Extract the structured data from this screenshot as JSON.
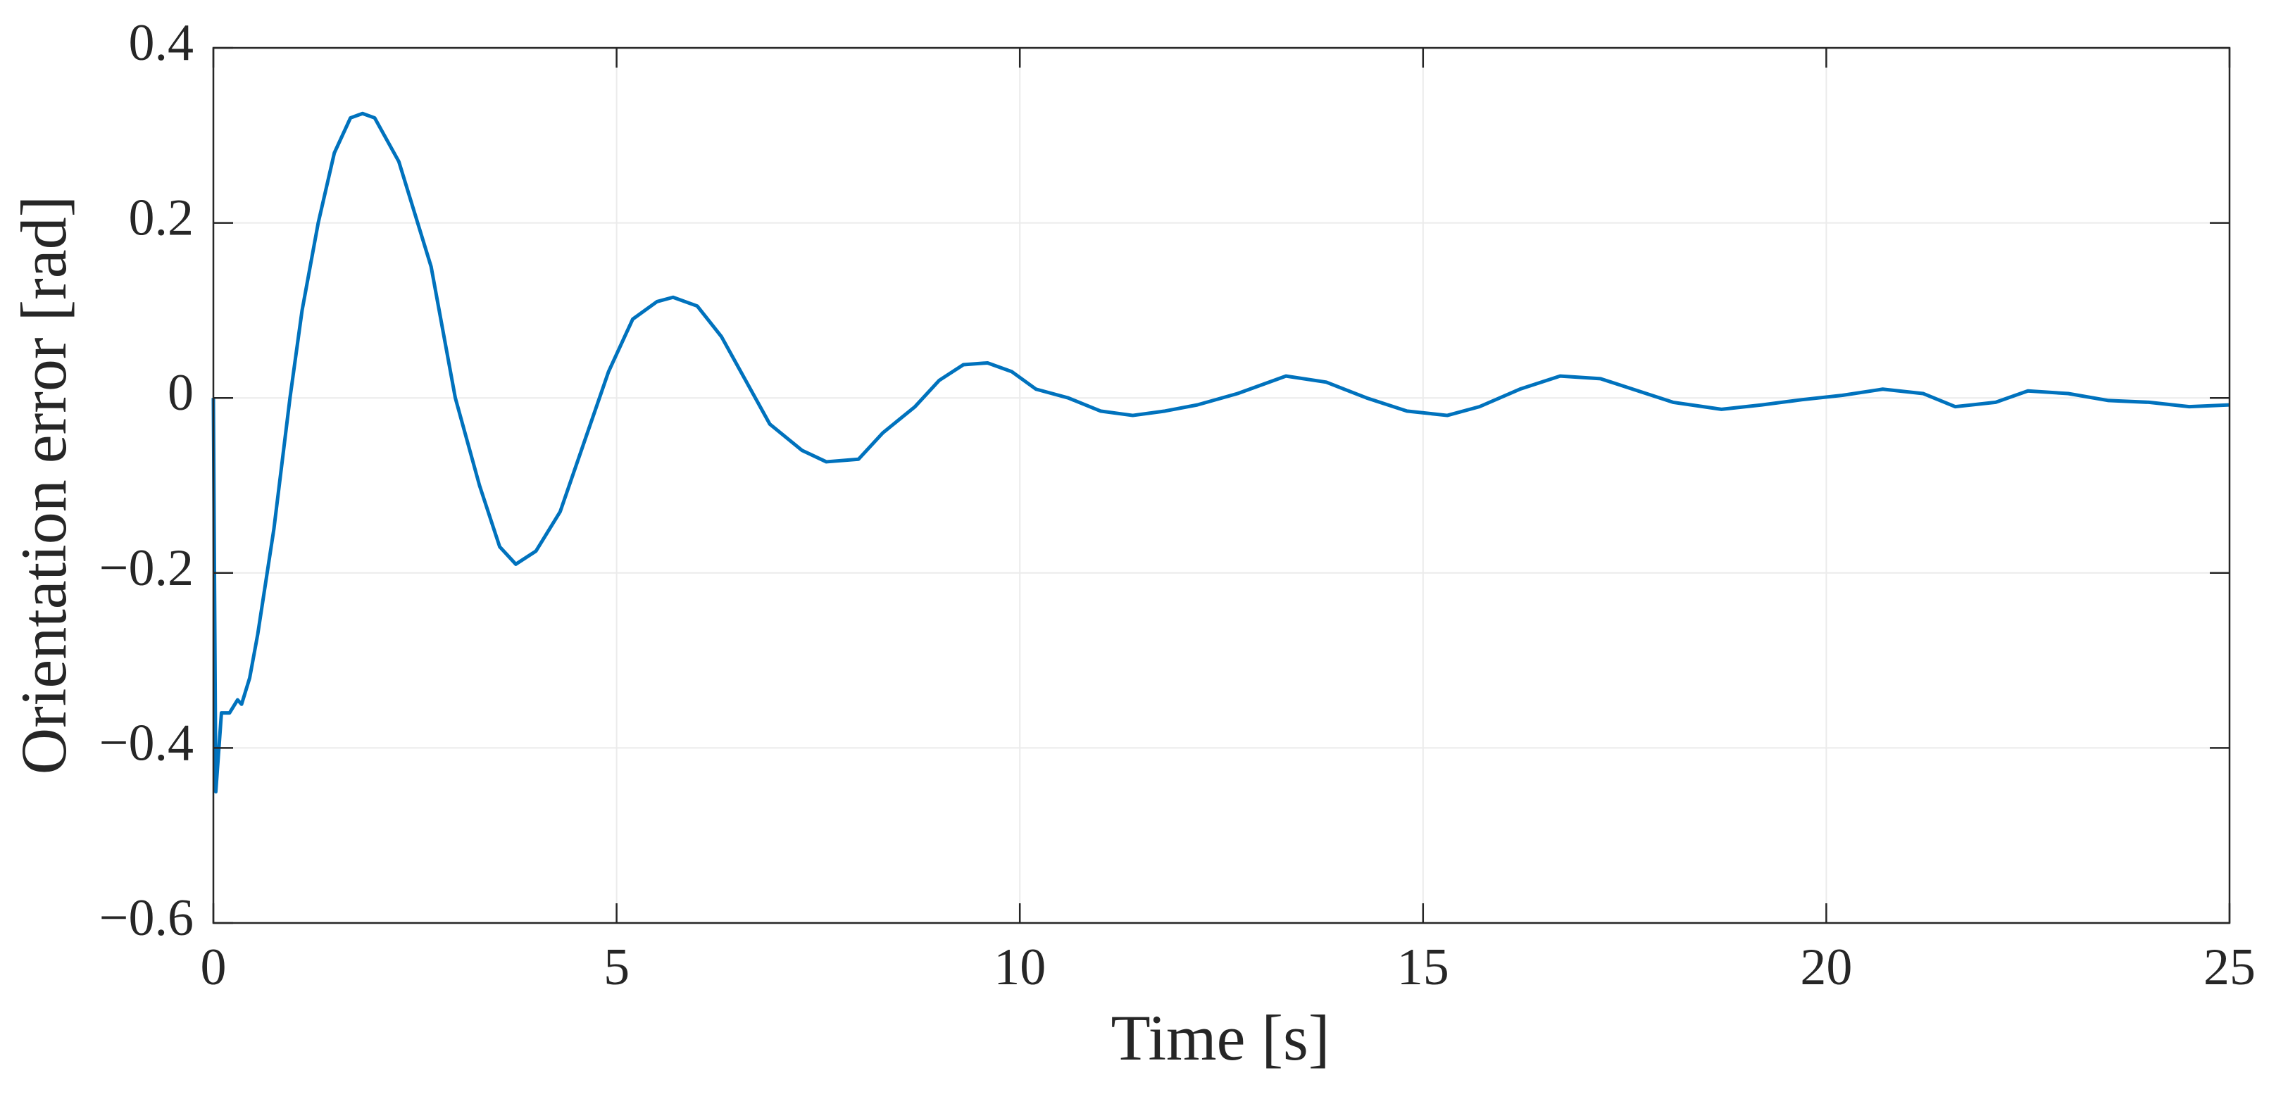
{
  "chart_data": {
    "type": "line",
    "xlabel": "Time [s]",
    "ylabel": "Orientation error [rad]",
    "x": [
      0,
      0.03,
      0.1,
      0.2,
      0.3,
      0.35,
      0.45,
      0.55,
      0.75,
      0.95,
      1.1,
      1.3,
      1.5,
      1.7,
      1.85,
      2.0,
      2.3,
      2.7,
      3.0,
      3.3,
      3.55,
      3.75,
      4.0,
      4.3,
      4.6,
      4.9,
      5.2,
      5.5,
      5.7,
      6.0,
      6.3,
      6.6,
      6.9,
      7.3,
      7.6,
      8.0,
      8.3,
      8.7,
      9.0,
      9.3,
      9.6,
      9.9,
      10.2,
      10.6,
      11.0,
      11.4,
      11.8,
      12.2,
      12.7,
      13.3,
      13.8,
      14.3,
      14.8,
      15.3,
      15.7,
      16.2,
      16.7,
      17.2,
      17.6,
      18.1,
      18.7,
      19.2,
      19.7,
      20.2,
      20.7,
      21.2,
      21.6,
      22.1,
      22.5,
      23.0,
      23.5,
      24.0,
      24.5,
      25
    ],
    "series": [
      {
        "color": "#0072bd",
        "values": [
          0,
          -0.45,
          -0.36,
          -0.36,
          -0.345,
          -0.35,
          -0.32,
          -0.27,
          -0.15,
          0,
          0.1,
          0.2,
          0.28,
          0.32,
          0.325,
          0.32,
          0.27,
          0.15,
          0,
          -0.1,
          -0.17,
          -0.19,
          -0.175,
          -0.13,
          -0.05,
          0.03,
          0.09,
          0.11,
          0.115,
          0.105,
          0.07,
          0.02,
          -0.03,
          -0.06,
          -0.073,
          -0.07,
          -0.04,
          -0.01,
          0.02,
          0.038,
          0.04,
          0.03,
          0.01,
          0,
          -0.015,
          -0.02,
          -0.015,
          -0.008,
          0.005,
          0.025,
          0.018,
          0,
          -0.015,
          -0.02,
          -0.01,
          0.01,
          0.025,
          0.022,
          0.01,
          -0.005,
          -0.013,
          -0.008,
          -0.002,
          0.003,
          0.01,
          0.005,
          -0.01,
          -0.005,
          0.008,
          0.005,
          -0.003,
          -0.005,
          -0.01,
          -0.008
        ]
      }
    ],
    "xlim": [
      0,
      25
    ],
    "ylim": [
      -0.6,
      0.4
    ],
    "xticks": [
      0,
      5,
      10,
      15,
      20,
      25
    ],
    "yticks": [
      {
        "value": -0.6,
        "label": "−0.6"
      },
      {
        "value": -0.4,
        "label": "−0.4"
      },
      {
        "value": -0.2,
        "label": "−0.2"
      },
      0,
      0.2,
      0.4
    ],
    "grid": true
  }
}
